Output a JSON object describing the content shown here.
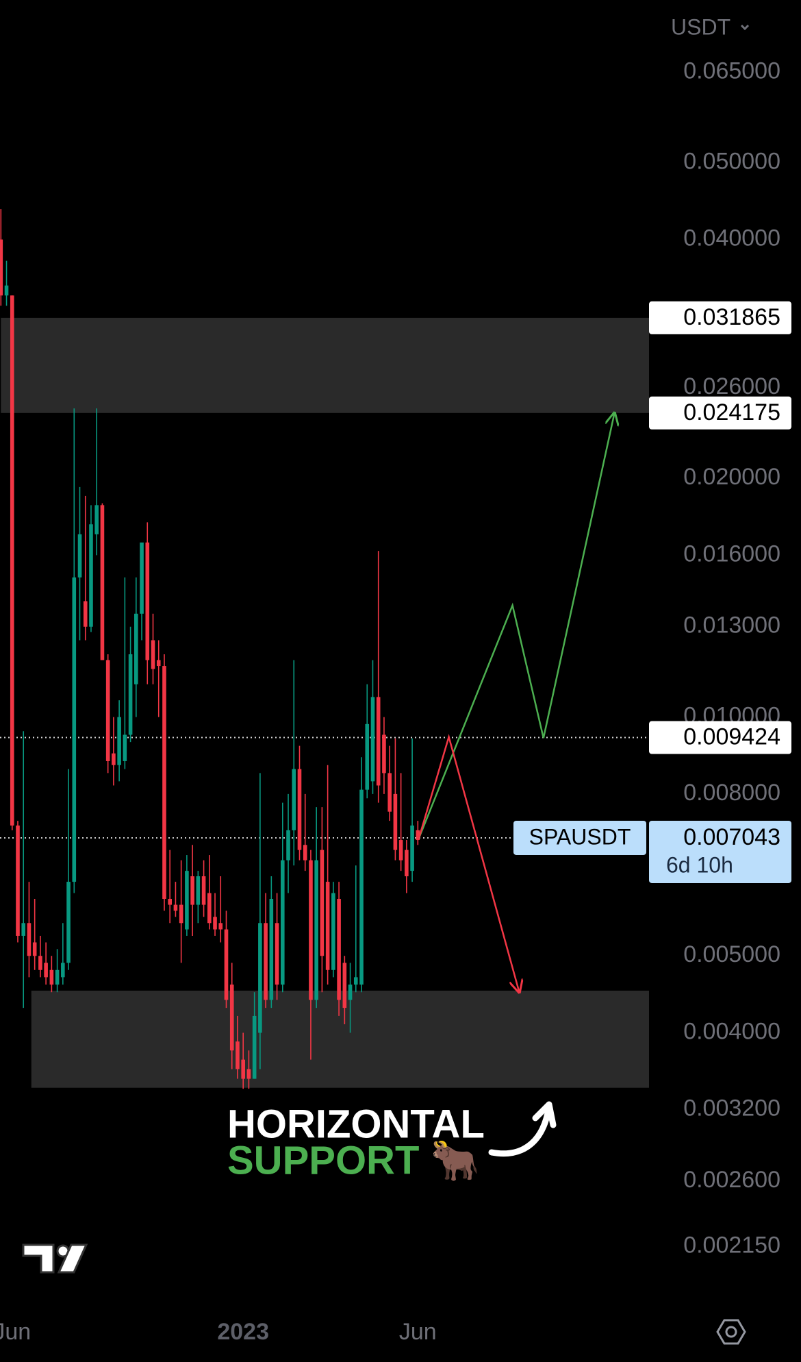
{
  "chart_data": {
    "type": "candlestick",
    "currency": "USDT",
    "log_scale": true,
    "grid": false,
    "up_color": "#089981",
    "down_color": "#f23645",
    "ylim": [
      0.0018,
      0.08
    ],
    "yticks": [
      {
        "value": 0.065,
        "label": "0.065000"
      },
      {
        "value": 0.05,
        "label": "0.050000"
      },
      {
        "value": 0.04,
        "label": "0.040000"
      },
      {
        "value": 0.026,
        "label": "0.026000"
      },
      {
        "value": 0.02,
        "label": "0.020000"
      },
      {
        "value": 0.016,
        "label": "0.016000"
      },
      {
        "value": 0.013,
        "label": "0.013000"
      },
      {
        "value": 0.01,
        "label": "0.010000"
      },
      {
        "value": 0.008,
        "label": "0.008000"
      },
      {
        "value": 0.005,
        "label": "0.005000"
      },
      {
        "value": 0.004,
        "label": "0.004000"
      },
      {
        "value": 0.0032,
        "label": "0.003200"
      },
      {
        "value": 0.0026,
        "label": "0.002600"
      },
      {
        "value": 0.00215,
        "label": "0.002150"
      }
    ],
    "categories": [
      null,
      null,
      "Jun",
      null,
      null,
      null,
      null,
      null,
      null,
      null,
      null,
      null,
      null,
      null,
      null,
      null,
      null,
      null,
      null,
      null,
      null,
      null,
      null,
      null,
      null,
      null,
      null,
      null,
      null,
      null,
      null,
      null,
      null,
      null,
      null,
      null,
      null,
      null,
      null,
      null,
      null,
      null,
      null,
      "2023",
      null,
      null,
      null,
      null,
      null,
      null,
      null,
      null,
      null,
      null,
      null,
      null,
      null,
      null,
      null,
      null,
      null,
      null,
      null,
      null,
      null,
      null,
      null,
      null,
      null,
      null,
      null,
      null,
      null,
      null,
      "Jun"
    ],
    "open": [
      0.04,
      0.034,
      0.034,
      0.0073,
      0.0053,
      0.0055,
      0.0052,
      0.005,
      0.0049,
      0.0048,
      0.0046,
      0.0047,
      0.0049,
      0.0062,
      0.015,
      0.014,
      0.013,
      0.017,
      0.0185,
      0.0118,
      0.009,
      0.0087,
      0.0088,
      0.0095,
      0.011,
      0.0135,
      0.0166,
      0.0125,
      0.0118,
      0.0116,
      0.0059,
      0.0058,
      0.0058,
      0.0054,
      0.0063,
      0.0058,
      0.0063,
      0.006,
      0.0056,
      0.0055,
      0.0054,
      0.0046,
      0.0039,
      0.0037,
      0.0036,
      0.0035,
      0.004,
      0.0055,
      0.0044,
      0.0055,
      0.0046,
      0.0066,
      0.0072,
      0.0086,
      0.0069,
      0.0066,
      0.0044,
      0.0068,
      0.0062,
      0.0048,
      0.0059,
      0.0049,
      0.0044,
      0.0046,
      0.0046,
      0.0081,
      0.0083,
      0.0106,
      0.0095,
      0.0085,
      0.008,
      0.007,
      0.0068,
      0.0064,
      0.0072
    ],
    "high": [
      0.0437,
      0.0376,
      0.034,
      0.0074,
      0.0096,
      0.0062,
      0.0059,
      0.0053,
      0.0052,
      0.005,
      0.0051,
      0.0055,
      0.0086,
      0.0245,
      0.0195,
      0.019,
      0.0185,
      0.0245,
      0.0186,
      0.012,
      0.01,
      0.0105,
      0.015,
      0.013,
      0.015,
      0.0165,
      0.0176,
      0.0135,
      0.0125,
      0.012,
      0.0068,
      0.0062,
      0.0066,
      0.0067,
      0.0069,
      0.0064,
      0.0066,
      0.0067,
      0.006,
      0.0063,
      0.0057,
      0.0049,
      0.0042,
      0.004,
      0.0038,
      0.0045,
      0.0085,
      0.006,
      0.0063,
      0.006,
      0.0078,
      0.008,
      0.0118,
      0.0092,
      0.008,
      0.0068,
      0.0077,
      0.0077,
      0.0087,
      0.0062,
      0.0062,
      0.005,
      0.0049,
      0.0065,
      0.0089,
      0.011,
      0.0118,
      0.0162,
      0.01,
      0.0092,
      0.0094,
      0.0085,
      0.007,
      0.0094,
      0.0074
    ],
    "low": [
      0.033,
      0.033,
      0.0072,
      0.0052,
      0.0043,
      0.0047,
      0.0048,
      0.0047,
      0.0046,
      0.0045,
      0.0045,
      0.0046,
      0.0048,
      0.006,
      0.0125,
      0.0125,
      0.0128,
      0.016,
      0.0118,
      0.0085,
      0.0082,
      0.0083,
      0.0086,
      0.0093,
      0.01,
      0.0125,
      0.011,
      0.011,
      0.01,
      0.0057,
      0.0055,
      0.0056,
      0.0049,
      0.0053,
      0.0053,
      0.0055,
      0.0056,
      0.0054,
      0.0053,
      0.0052,
      0.0043,
      0.0036,
      0.0035,
      0.0034,
      0.0034,
      0.0035,
      0.0036,
      0.0043,
      0.0043,
      0.0044,
      0.0045,
      0.006,
      0.0065,
      0.0066,
      0.0064,
      0.0037,
      0.0043,
      0.0045,
      0.0046,
      0.0047,
      0.0042,
      0.0041,
      0.004,
      0.0045,
      0.0045,
      0.0079,
      0.008,
      0.0078,
      0.008,
      0.0074,
      0.0066,
      0.0064,
      0.006,
      0.0062,
      0.0069
    ],
    "close": [
      0.034,
      0.035,
      0.0073,
      0.0053,
      0.0055,
      0.005,
      0.005,
      0.0048,
      0.0047,
      0.0046,
      0.0048,
      0.0049,
      0.0062,
      0.015,
      0.017,
      0.013,
      0.0175,
      0.0185,
      0.0118,
      0.0088,
      0.0087,
      0.01,
      0.0095,
      0.012,
      0.0135,
      0.0166,
      0.0118,
      0.0115,
      0.0116,
      0.0059,
      0.0058,
      0.0057,
      0.0055,
      0.0064,
      0.0058,
      0.0063,
      0.0058,
      0.0055,
      0.0054,
      0.0054,
      0.0044,
      0.0038,
      0.0036,
      0.0035,
      0.0035,
      0.0042,
      0.0055,
      0.0044,
      0.0059,
      0.0046,
      0.0066,
      0.0072,
      0.0086,
      0.0068,
      0.0066,
      0.0044,
      0.0066,
      0.005,
      0.0048,
      0.006,
      0.0044,
      0.0043,
      0.0046,
      0.0047,
      0.0081,
      0.0098,
      0.0106,
      0.0082,
      0.0085,
      0.0076,
      0.0068,
      0.0066,
      0.0063,
      0.0073,
      0.007
    ],
    "zones": [
      {
        "top": 0.031865,
        "bottom": 0.024175,
        "start": 0
      },
      {
        "top": 0.00452,
        "bottom": 0.00341,
        "start": 5.4
      }
    ],
    "price_lines": [
      0.031865,
      0.024175,
      0.009424
    ],
    "dotted_lines": [
      0.009424,
      0.007043
    ],
    "current": {
      "symbol": "SPAUSDT",
      "price": 0.007043,
      "countdown": "6d 10h"
    },
    "projections": [
      {
        "color": "#4caf50",
        "x": [
          74.2,
          90.8,
          96.3,
          108.9
        ],
        "values": [
          0.00704,
          0.01383,
          0.00941,
          0.024175
        ]
      },
      {
        "color": "#f23645",
        "x": [
          74.2,
          79.5,
          92
        ],
        "values": [
          0.00704,
          0.00944,
          0.0045
        ]
      }
    ],
    "annotation": {
      "line1": "HORIZONTAL",
      "line2": "SUPPORT 🐂"
    }
  }
}
